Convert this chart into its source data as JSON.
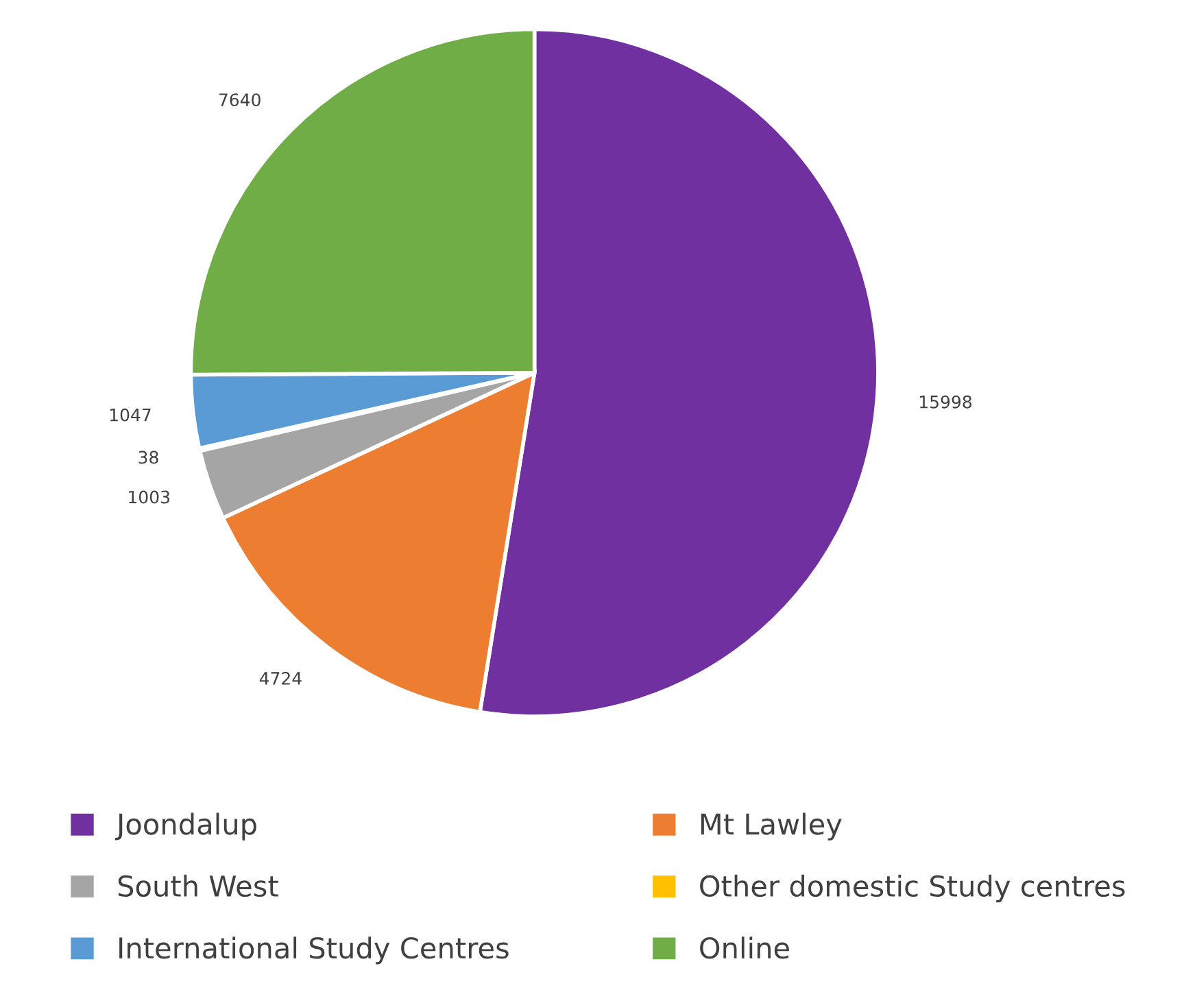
{
  "chart_data": {
    "type": "pie",
    "categories": [
      "Joondalup",
      "Mt Lawley",
      "South West",
      "Other domestic Study centres",
      "International Study Centres",
      "Online"
    ],
    "values": [
      15998,
      4724,
      1003,
      38,
      1047,
      7640
    ],
    "colors": [
      "#7030a0",
      "#ed7d31",
      "#a5a5a5",
      "#ffc000",
      "#5b9bd5",
      "#70ad47"
    ],
    "data_labels": true,
    "legend": "bottom"
  }
}
